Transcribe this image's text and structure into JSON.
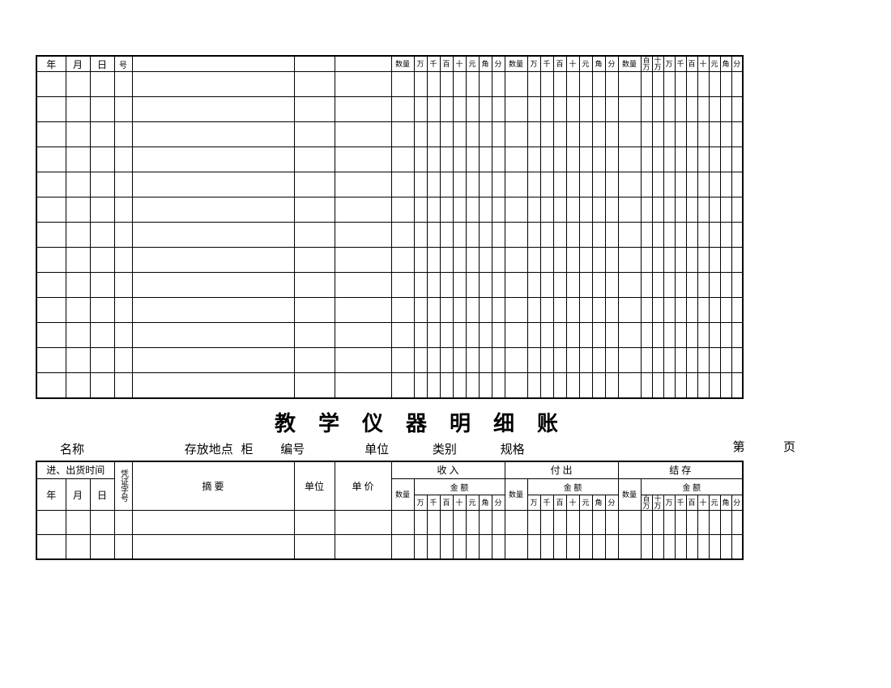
{
  "top": {
    "headerRemnant": {
      "year": "年",
      "month": "月",
      "day": "日",
      "hao": "号",
      "shuliang_a": "数量",
      "shuliang_b": "数量",
      "shuliang_c": "数量",
      "wan": "万",
      "qian": "千",
      "bai": "百",
      "shi": "十",
      "yuan": "元",
      "jiao": "角",
      "fen": "分",
      "baiwan": "百万",
      "shiwan": "十万"
    }
  },
  "titleBlock": {
    "title": "教学仪器明细账",
    "page_prefix": "第",
    "page_suffix": "页",
    "meta": {
      "name": "名称",
      "loc_store": "存放地点",
      "loc_cabinet": "柜",
      "bianhao": "编号",
      "danwei": "单位",
      "leibie": "类别",
      "guige": "规格"
    }
  },
  "hdr": {
    "time": "进、出货时间",
    "year": "年",
    "month": "月",
    "day": "日",
    "voucher": "凭证字号",
    "zhaiyao": "摘    要",
    "danwei": "单位",
    "danjia": "单  价",
    "shouru": "收    入",
    "fuchu": "付    出",
    "jiecun": "结    存",
    "shuliang": "数量",
    "jine": "金  额",
    "wan": "万",
    "qian": "千",
    "bai": "百",
    "shi": "十",
    "yuan": "元",
    "jiao": "角",
    "fen": "分",
    "baiwan": "百万",
    "shiwan": "十万"
  },
  "layout": {
    "topBlankRows": 13,
    "bottomBlankRows": 2,
    "col_w": {
      "year": 36,
      "month": 30,
      "day": 30,
      "voucher": 22,
      "zhaiyao": 200,
      "danwei": 50,
      "danjia": 70,
      "qty": 28,
      "digit": 16,
      "c_qty": 28,
      "c_digit": 14
    },
    "rowH": {
      "top_header": 18,
      "top_blank": 31,
      "hdr1": 22,
      "hdr2": 20,
      "hdr3": 18,
      "blank": 30
    }
  }
}
